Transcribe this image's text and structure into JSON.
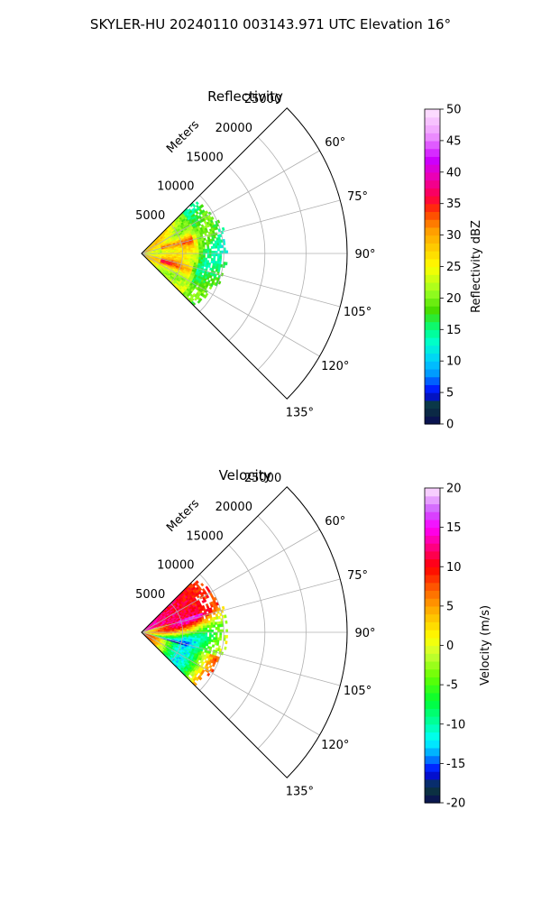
{
  "figure": {
    "suptitle": "SKYLER-HU  20240110  003143.971 UTC Elevation 16°"
  },
  "chart_data": [
    {
      "type": "heatmap",
      "projection": "polar-sector",
      "title": "Reflectivity",
      "radial_label": "Meters",
      "radial_ticks": [
        5000,
        10000,
        15000,
        20000,
        25000
      ],
      "r_max_m": 25000,
      "azimuth_ticks_deg": [
        60,
        75,
        90,
        105,
        120,
        135
      ],
      "azimuth_range_deg": [
        45,
        135
      ],
      "data_extent_m": 11000,
      "colorbar": {
        "label": "Reflectivity dBZ",
        "range": [
          0,
          50
        ],
        "ticks": [
          0,
          5,
          10,
          15,
          20,
          25,
          30,
          35,
          40,
          45,
          50
        ],
        "stops": [
          [
            0,
            "#0a0a55"
          ],
          [
            3,
            "#0b3c3c"
          ],
          [
            5,
            "#0000ff"
          ],
          [
            8,
            "#0099ff"
          ],
          [
            10,
            "#00ccff"
          ],
          [
            13,
            "#00ffcc"
          ],
          [
            15,
            "#00ff88"
          ],
          [
            18,
            "#44dd00"
          ],
          [
            21,
            "#99ff22"
          ],
          [
            25,
            "#ffff00"
          ],
          [
            28,
            "#ffcc00"
          ],
          [
            31,
            "#ff9900"
          ],
          [
            34,
            "#ff3300"
          ],
          [
            36,
            "#ff0044"
          ],
          [
            39,
            "#ee00aa"
          ],
          [
            42,
            "#cc00ff"
          ],
          [
            46,
            "#ee99ff"
          ],
          [
            50,
            "#ffe6ff"
          ]
        ]
      }
    },
    {
      "type": "heatmap",
      "projection": "polar-sector",
      "title": "Velocity",
      "radial_label": "Meters",
      "radial_ticks": [
        5000,
        10000,
        15000,
        20000,
        25000
      ],
      "r_max_m": 25000,
      "azimuth_ticks_deg": [
        60,
        75,
        90,
        105,
        120,
        135
      ],
      "azimuth_range_deg": [
        45,
        135
      ],
      "data_extent_m": 11000,
      "colorbar": {
        "label": "Velocity (m/s)",
        "range": [
          -20,
          20
        ],
        "ticks": [
          -20,
          -15,
          -10,
          -5,
          0,
          5,
          10,
          15,
          20
        ],
        "stops": [
          [
            -20,
            "#0a0a55"
          ],
          [
            -18,
            "#0b3c3c"
          ],
          [
            -16,
            "#0000ff"
          ],
          [
            -14,
            "#0099ff"
          ],
          [
            -12,
            "#00ffff"
          ],
          [
            -10,
            "#00ffaa"
          ],
          [
            -7,
            "#00ff33"
          ],
          [
            -4,
            "#66ff00"
          ],
          [
            -1,
            "#ccff33"
          ],
          [
            1,
            "#ffff00"
          ],
          [
            4,
            "#ffbb00"
          ],
          [
            7,
            "#ff6600"
          ],
          [
            10,
            "#ff0000"
          ],
          [
            13,
            "#ff0099"
          ],
          [
            15,
            "#ff00ff"
          ],
          [
            17,
            "#cc55ff"
          ],
          [
            20,
            "#ffe6ff"
          ]
        ]
      }
    }
  ]
}
